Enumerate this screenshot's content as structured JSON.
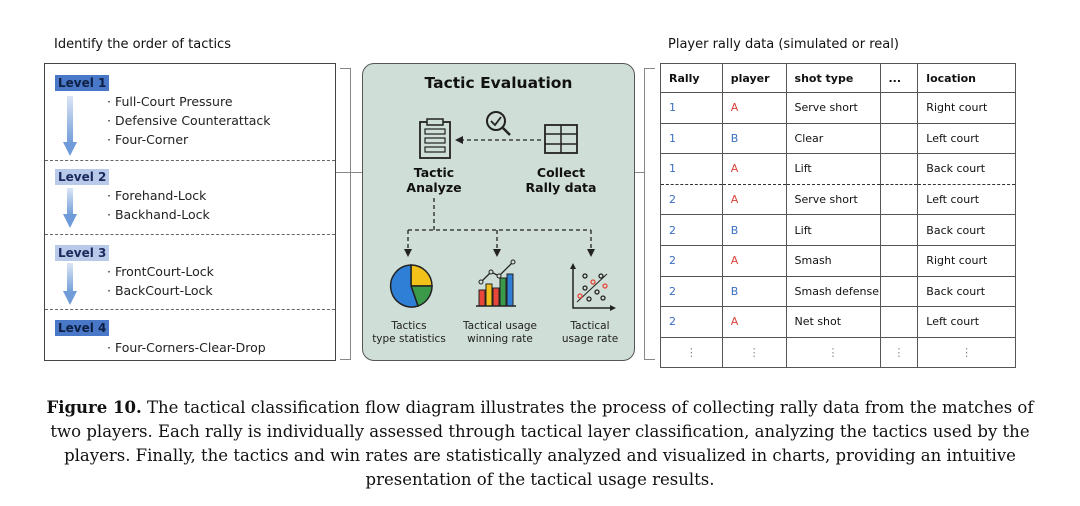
{
  "left_heading": "Identify the order of tactics",
  "right_heading": "Player rally data (simulated or real)",
  "levels": [
    {
      "label": "Level 1",
      "items": [
        "· Full-Court Pressure",
        "· Defensive Counterattack",
        "· Four-Corner"
      ]
    },
    {
      "label": "Level 2",
      "items": [
        "· Forehand-Lock",
        "· Backhand-Lock"
      ]
    },
    {
      "label": "Level 3",
      "items": [
        "· FrontCourt-Lock",
        "· BackCourt-Lock"
      ]
    },
    {
      "label": "Level 4",
      "items": [
        "· Four-Corners-Clear-Drop"
      ]
    }
  ],
  "evaluation": {
    "title": "Tactic Evaluation",
    "analyze_label_1": "Tactic",
    "analyze_label_2": "Analyze",
    "collect_label_1": "Collect",
    "collect_label_2": "Rally data",
    "charts": [
      {
        "line1": "Tactics",
        "line2": "type statistics",
        "icon": "pie-chart-icon"
      },
      {
        "line1": "Tactical usage",
        "line2": "winning rate",
        "icon": "bar-chart-icon"
      },
      {
        "line1": "Tactical",
        "line2": "usage rate",
        "icon": "scatter-plot-icon"
      }
    ]
  },
  "table": {
    "headers": [
      "Rally",
      "player",
      "shot type",
      "...",
      "location"
    ],
    "rows": [
      [
        "1",
        "A",
        "Serve short",
        "",
        "Right court"
      ],
      [
        "1",
        "B",
        "Clear",
        "",
        "Left court"
      ],
      [
        "1",
        "A",
        "Lift",
        "",
        "Back court"
      ],
      [
        "2",
        "A",
        "Serve short",
        "",
        "Left court"
      ],
      [
        "2",
        "B",
        "Lift",
        "",
        "Back court"
      ],
      [
        "2",
        "A",
        "Smash",
        "",
        "Right  court"
      ],
      [
        "2",
        "B",
        "Smash defense",
        "",
        "Back court"
      ],
      [
        "2",
        "A",
        "Net shot",
        "",
        "Left court"
      ],
      [
        "⋮",
        "⋮",
        "⋮",
        "⋮",
        "⋮"
      ]
    ]
  },
  "caption": {
    "label": "Figure 10.",
    "text": " The tactical classification flow diagram illustrates the process of collecting rally data from the matches of two players. Each rally is individually assessed through tactical layer classification, analyzing the tactics used by the players. Finally, the tactics and win rates are statistically analyzed and visualized in charts, providing an intuitive presentation of the tactical usage results."
  },
  "colors": {
    "panel_bg": "#cfded6",
    "level_highlight": "#b9c9ea",
    "level_highlight_dark": "#4a78c8",
    "player_a": "#d8433b",
    "player_b": "#3a6fc1",
    "pie_blue": "#2f7fd6",
    "pie_yellow": "#f2c21b",
    "pie_green": "#3a9a4a"
  }
}
